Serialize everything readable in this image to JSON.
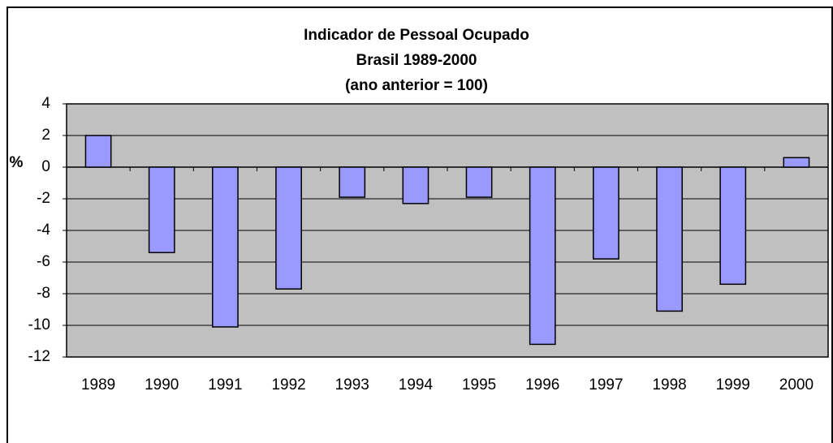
{
  "chart_data": {
    "type": "bar",
    "title": [
      "Indicador de Pessoal Ocupado",
      "Brasil 1989-2000",
      "(ano anterior = 100)"
    ],
    "ylabel": "%",
    "categories": [
      "1989",
      "1990",
      "1991",
      "1992",
      "1993",
      "1994",
      "1995",
      "1996",
      "1997",
      "1998",
      "1999",
      "2000"
    ],
    "values": [
      2.0,
      -5.4,
      -10.1,
      -7.7,
      -1.9,
      -2.3,
      -1.9,
      -11.2,
      -5.8,
      -9.1,
      -7.4,
      0.6
    ],
    "color": "#9999ff",
    "ylim": [
      -12,
      4
    ],
    "yticks": [
      -12,
      -10,
      -8,
      -6,
      -4,
      -2,
      0,
      2,
      4
    ],
    "grid": true
  }
}
